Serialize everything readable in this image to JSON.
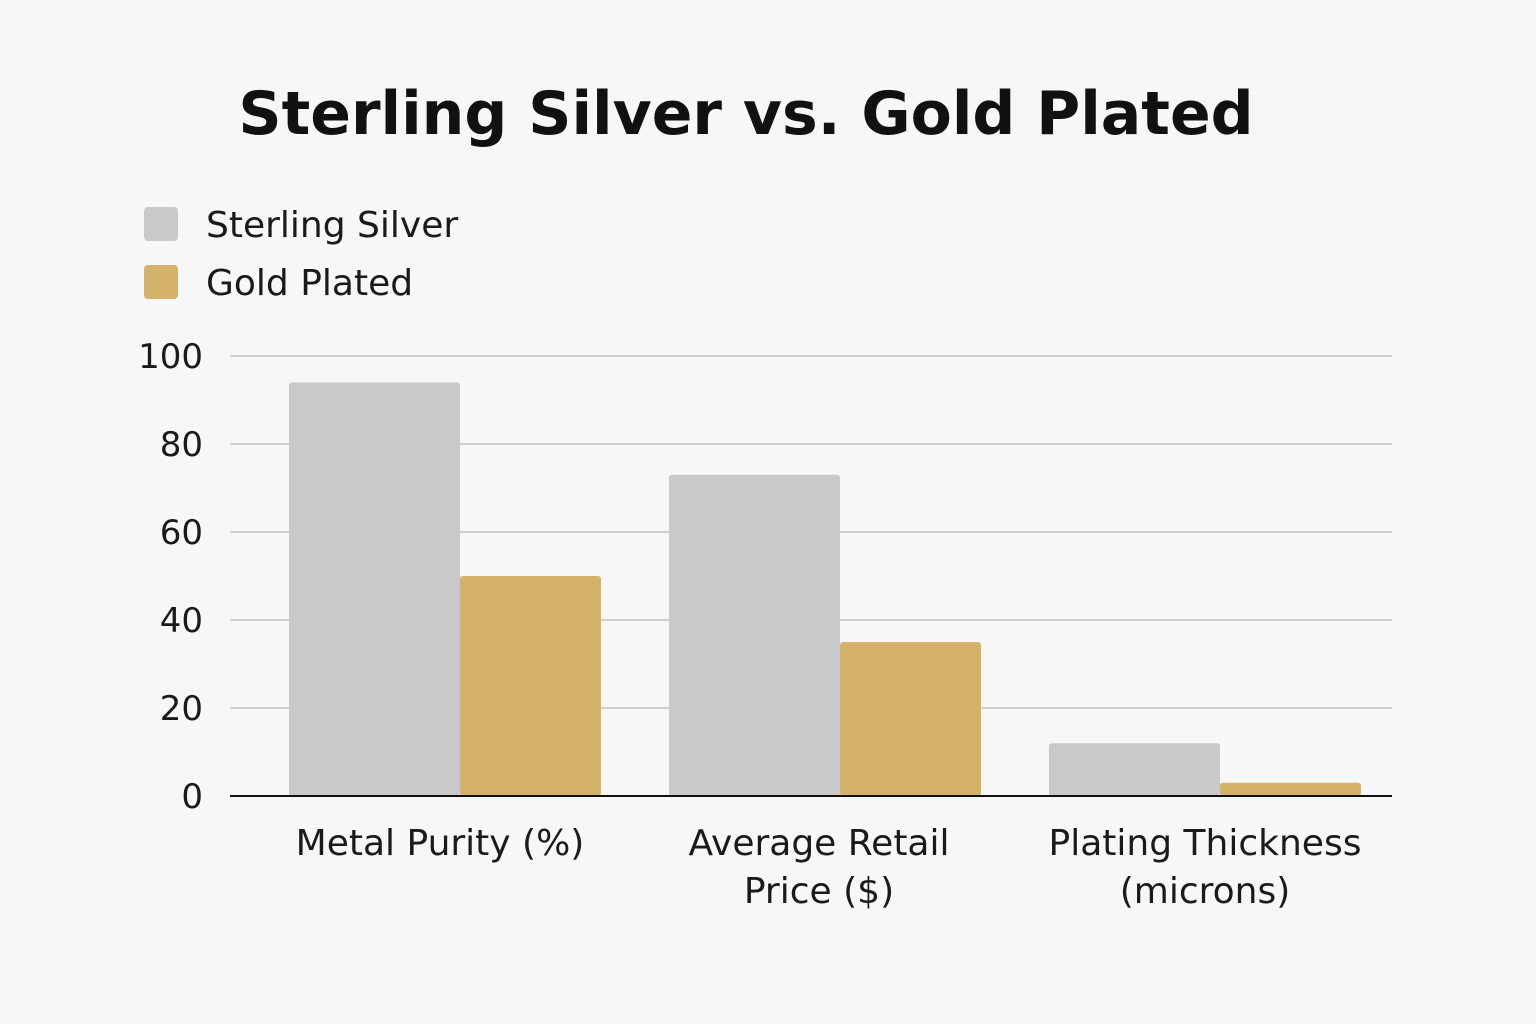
{
  "chart_data": {
    "type": "bar",
    "title": "Sterling Silver vs. Gold Plated",
    "categories": [
      [
        "Metal Purity (%)"
      ],
      [
        "Average Retail",
        "Price ($)"
      ],
      [
        "Plating Thickness",
        "(microns)"
      ]
    ],
    "series": [
      {
        "name": "Sterling Silver",
        "color": "#c9c9c9",
        "values": [
          94,
          73,
          12
        ]
      },
      {
        "name": "Gold Plated",
        "color": "#d5b26a",
        "values": [
          50,
          35,
          3
        ]
      }
    ],
    "ylim": [
      0,
      100
    ],
    "yticks": [
      "0",
      "20",
      "40",
      "60",
      "80",
      "100"
    ],
    "xlabel": "",
    "ylabel": "",
    "grid": true,
    "legend": "top-left"
  }
}
